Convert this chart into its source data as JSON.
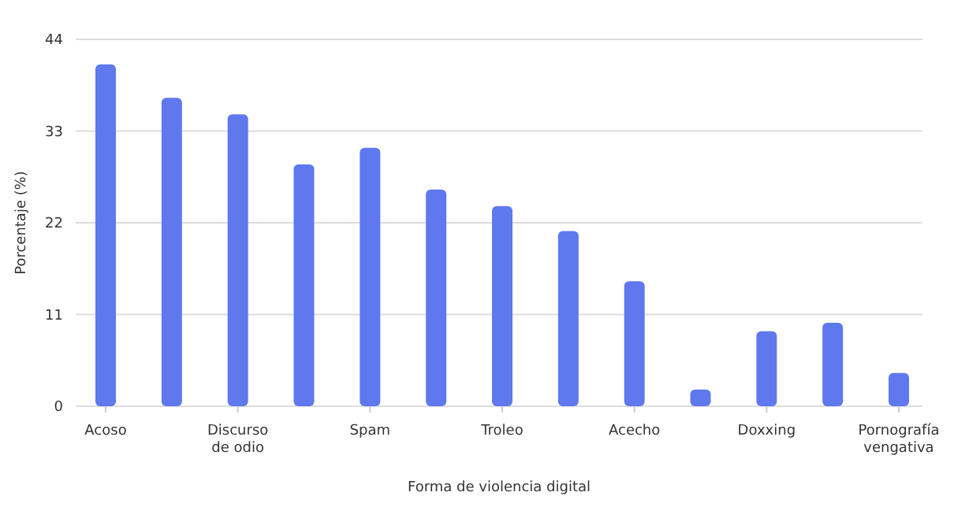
{
  "chart_data": {
    "type": "bar",
    "xlabel": "Forma de violencia digital",
    "ylabel": "Porcentaje (%)",
    "categories": [
      "Acoso",
      null,
      "Discurso de odio",
      null,
      "Spam",
      null,
      "Troleo",
      null,
      "Acecho",
      null,
      "Doxxing",
      null,
      "Pornografía vengativa"
    ],
    "values": [
      41,
      37,
      35,
      29,
      31,
      26,
      24,
      21,
      15,
      2,
      9,
      10,
      4
    ],
    "color": "#6078ee",
    "ylim": [
      0,
      44
    ],
    "yticks": [
      0,
      11,
      22,
      33,
      44
    ],
    "grid": "y"
  }
}
